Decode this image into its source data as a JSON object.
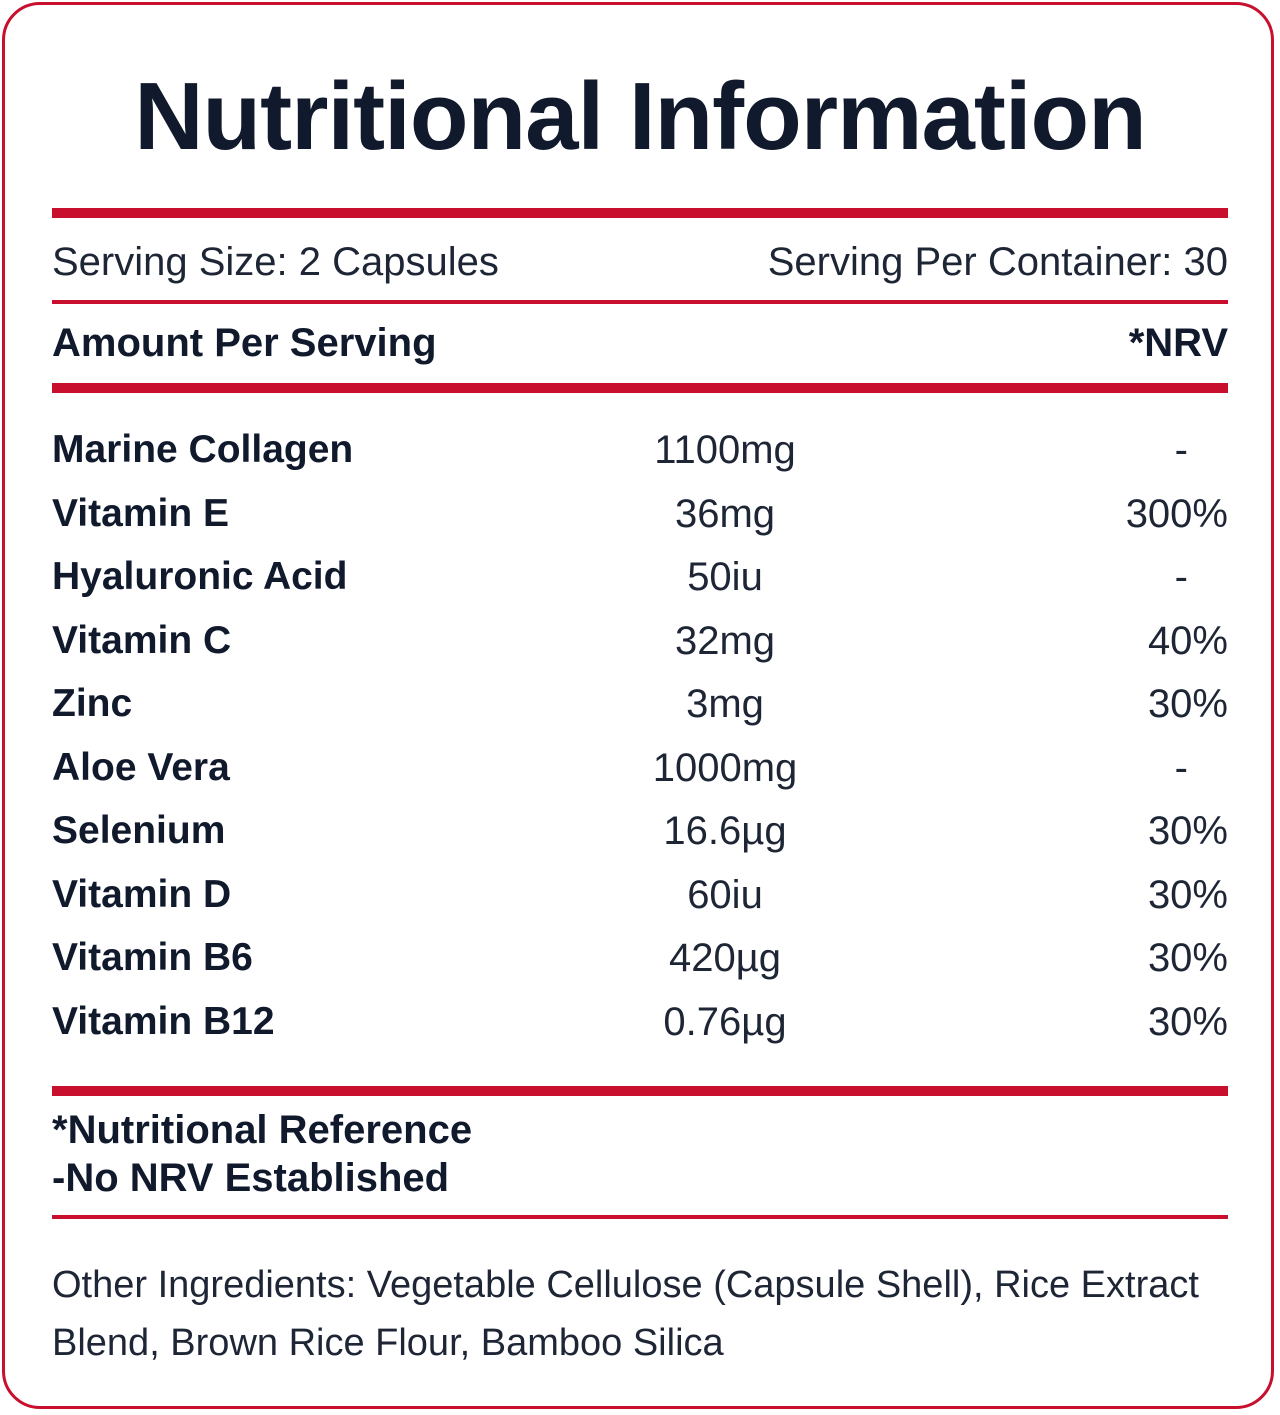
{
  "title": "Nutritional Information",
  "serving": {
    "size": "Serving Size: 2 Capsules",
    "per_container": "Serving Per Container: 30"
  },
  "header": {
    "amount": "Amount Per Serving",
    "nrv": "*NRV"
  },
  "nutrients": [
    {
      "name": "Marine Collagen",
      "amount": "1100mg",
      "nrv": "-"
    },
    {
      "name": "Vitamin E",
      "amount": "36mg",
      "nrv": "300%"
    },
    {
      "name": "Hyaluronic Acid",
      "amount": "50iu",
      "nrv": "-"
    },
    {
      "name": "Vitamin C",
      "amount": "32mg",
      "nrv": "40%"
    },
    {
      "name": "Zinc",
      "amount": "3mg",
      "nrv": "30%"
    },
    {
      "name": "Aloe Vera",
      "amount": "1000mg",
      "nrv": "-"
    },
    {
      "name": "Selenium",
      "amount": "16.6µg",
      "nrv": "30%"
    },
    {
      "name": "Vitamin D",
      "amount": "60iu",
      "nrv": "30%"
    },
    {
      "name": "Vitamin B6",
      "amount": "420µg",
      "nrv": "30%"
    },
    {
      "name": "Vitamin B12",
      "amount": "0.76µg",
      "nrv": "30%"
    }
  ],
  "footnotes": {
    "nrv_reference": "*Nutritional Reference",
    "no_nrv": "-No NRV Established"
  },
  "other_ingredients": "Other Ingredients: Vegetable Cellulose (Capsule Shell), Rice Extract Blend, Brown Rice Flour, Bamboo Silica",
  "colors": {
    "accent": "#c8102e",
    "text": "#111a2c"
  }
}
